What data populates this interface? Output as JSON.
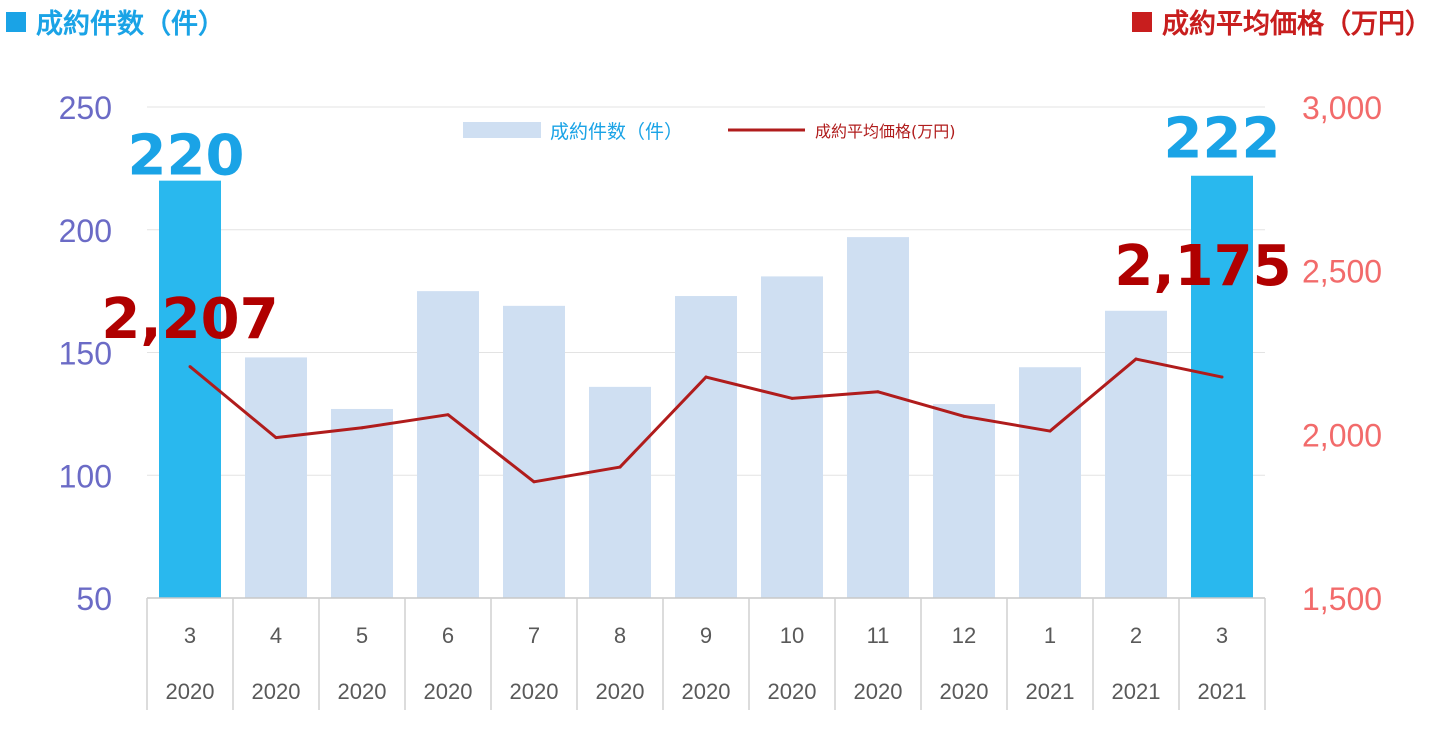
{
  "header": {
    "left_title": "成約件数（件）",
    "right_title": "成約平均価格（万円）"
  },
  "colors": {
    "left_title": "#1aa3e6",
    "right_title": "#c81e1e",
    "bar_normal": "#cfdff2",
    "bar_highlight": "#29b8ee",
    "line": "#b01c1c",
    "left_axis_text": "#6b6bc6",
    "right_axis_text": "#f26b6b",
    "category_text": "#595959",
    "legend_bar_text": "#1aa3e6",
    "legend_line_text": "#b01c1c",
    "big_bar_label": "#1aa3e6",
    "big_line_label": "#b00000"
  },
  "chart_data": {
    "type": "bar",
    "categories": [
      "3",
      "4",
      "5",
      "6",
      "7",
      "8",
      "9",
      "10",
      "11",
      "12",
      "1",
      "2",
      "3"
    ],
    "years": [
      "2020",
      "2020",
      "2020",
      "2020",
      "2020",
      "2020",
      "2020",
      "2020",
      "2020",
      "2020",
      "2021",
      "2021",
      "2021"
    ],
    "series": [
      {
        "name": "成約件数（件）",
        "type": "bar",
        "axis": "left",
        "values": [
          220,
          148,
          127,
          175,
          169,
          136,
          173,
          181,
          197,
          129,
          144,
          167,
          222
        ],
        "highlight": [
          true,
          false,
          false,
          false,
          false,
          false,
          false,
          false,
          false,
          false,
          false,
          false,
          true
        ]
      },
      {
        "name": "成約平均価格(万円)",
        "type": "line",
        "axis": "right",
        "values": [
          2207,
          1990,
          2020,
          2060,
          1855,
          1900,
          2175,
          2110,
          2130,
          2055,
          2010,
          2230,
          2175
        ]
      }
    ],
    "left_axis": {
      "ylim": [
        50,
        250
      ],
      "ticks": [
        "50",
        "100",
        "150",
        "200",
        "250"
      ]
    },
    "right_axis": {
      "ylim": [
        1500,
        3000
      ],
      "ticks": [
        "1,500",
        "2,000",
        "2,500",
        "3,000"
      ]
    },
    "data_labels": {
      "bar_first": "220",
      "bar_last": "222",
      "line_first": "2,207",
      "line_last": "2,175"
    },
    "legend": {
      "position": "top-center",
      "bar_label": "成約件数（件）",
      "line_label": "成約平均価格(万円)"
    },
    "grid": true
  }
}
